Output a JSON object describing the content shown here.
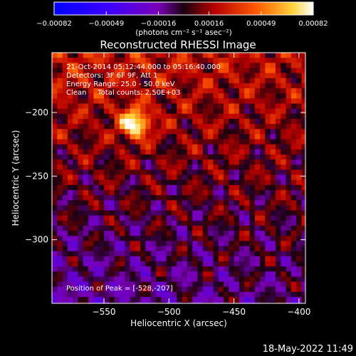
{
  "chart_data": {
    "type": "heatmap",
    "title": "Reconstructed RHESSI Image",
    "xlabel": "Heliocentric X (arcsec)",
    "ylabel": "Heliocentric Y (arcsec)",
    "xlim": [
      -590,
      -395
    ],
    "ylim": [
      -350,
      -153
    ],
    "x_ticks": [
      -550,
      -500,
      -450,
      -400
    ],
    "y_ticks": [
      -200,
      -250,
      -300
    ],
    "x_tick_labels": [
      "−550",
      "−500",
      "−450",
      "−400"
    ],
    "y_tick_labels": [
      "−200",
      "−250",
      "−300"
    ],
    "colorbar": {
      "min": -0.00082,
      "max": 0.00082,
      "ticks": [
        -0.00082,
        -0.00049,
        -0.00016,
        0.00016,
        0.00049,
        0.00082
      ],
      "tick_labels": [
        "−0.00082",
        "−0.00049",
        "−0.00016",
        "0.00016",
        "0.00049",
        "0.00082"
      ],
      "units_label": "(photons cm⁻² s⁻¹ asec⁻²)"
    },
    "annotations": [
      "21-Oct-2014 05:12:44.000 to 05:16:40.000",
      "Detectors: 3F 6F 9F, Att 1",
      "Energy Range: 25.0 - 50.0 keV",
      "Clean     Total counts: 2.50E+03"
    ],
    "peak_label": "Position of Peak = [-528,-207]",
    "peak": {
      "x": -528,
      "y": -207
    },
    "grid": false
  },
  "footer": {
    "timestamp": "18-May-2022 11:49"
  }
}
